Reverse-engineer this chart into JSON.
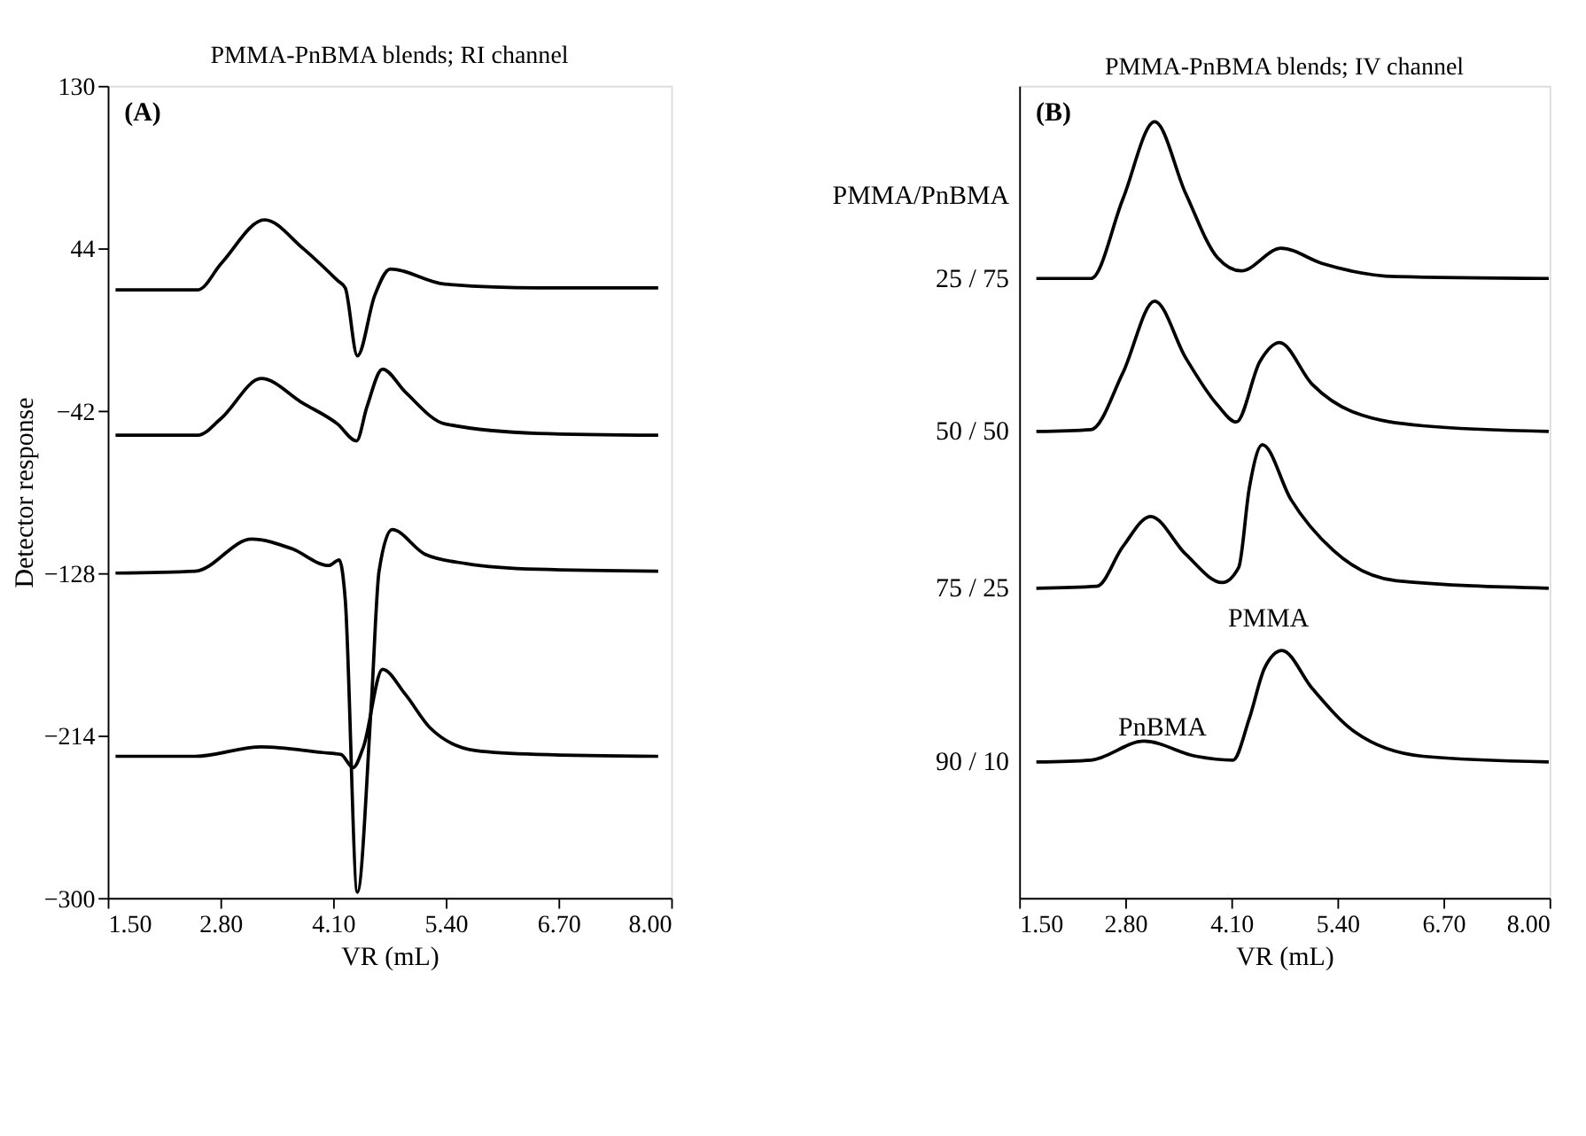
{
  "chart_data": [
    {
      "type": "line",
      "title": "PMMA-PnBMA blends; RI channel",
      "xlabel": "VR (mL)",
      "ylabel": "Detector response",
      "xlim": [
        1.5,
        8.0
      ],
      "xticks": [
        {
          "value": 1.5,
          "label": "1.50"
        },
        {
          "value": 2.8,
          "label": "2.80"
        },
        {
          "value": 4.1,
          "label": "4.10"
        },
        {
          "value": 5.4,
          "label": "5.40"
        },
        {
          "value": 6.7,
          "label": "6.70"
        },
        {
          "value": 8.0,
          "label": "8.00"
        }
      ],
      "ylim": [
        -300,
        130
      ],
      "yticks": [
        -300,
        -214,
        -128,
        -42,
        44,
        130
      ],
      "grid": false,
      "marker": "none",
      "line_style": "solid",
      "annotations": [
        "(A)"
      ],
      "series": [
        {
          "color": "#000000",
          "x": [
            1.59,
            2.54,
            2.81,
            3.31,
            3.75,
            4.15,
            4.24,
            4.38,
            4.58,
            4.76,
            5.39,
            6.46,
            7.85
          ],
          "values": [
            22,
            22,
            36,
            59,
            44,
            27,
            23,
            -13,
            19,
            33,
            25,
            23,
            23
          ]
        },
        {
          "color": "#000000",
          "x": [
            1.59,
            2.54,
            2.81,
            3.27,
            3.75,
            4.15,
            4.37,
            4.49,
            4.67,
            4.93,
            5.39,
            6.46,
            7.85
          ],
          "values": [
            -55,
            -55,
            -46,
            -25,
            -38,
            -49,
            -58,
            -40,
            -20,
            -32,
            -49,
            -54,
            -55
          ]
        },
        {
          "color": "#000000",
          "x": [
            1.59,
            2.51,
            3.16,
            3.62,
            4.05,
            4.17,
            4.24,
            4.38,
            4.54,
            4.63,
            4.78,
            5.16,
            5.64,
            6.46,
            7.85
          ],
          "values": [
            -128,
            -127,
            -110,
            -115,
            -124,
            -121,
            -142,
            -297,
            -198,
            -127,
            -105,
            -118,
            -123,
            -126,
            -127
          ]
        },
        {
          "color": "#000000",
          "x": [
            1.59,
            2.51,
            3.27,
            3.98,
            4.19,
            4.33,
            4.45,
            4.67,
            4.93,
            5.22,
            5.75,
            6.46,
            7.85
          ],
          "values": [
            -225,
            -225,
            -220,
            -223,
            -224,
            -231,
            -220,
            -179,
            -192,
            -210,
            -222,
            -224,
            -225
          ]
        }
      ]
    },
    {
      "type": "line",
      "title": "PMMA-PnBMA blends; IV channel",
      "xlabel": "VR (mL)",
      "legend_title": "PMMA/PnBMA",
      "xlim": [
        1.5,
        8.0
      ],
      "xticks": [
        {
          "value": 1.5,
          "label": "1.50"
        },
        {
          "value": 2.8,
          "label": "2.80"
        },
        {
          "value": 4.1,
          "label": "4.10"
        },
        {
          "value": 5.4,
          "label": "5.40"
        },
        {
          "value": 6.7,
          "label": "6.70"
        },
        {
          "value": 8.0,
          "label": "8.00"
        }
      ],
      "ylim": [
        -300,
        130
      ],
      "tick_labels": "x",
      "grid": false,
      "marker": "none",
      "line_style": "solid",
      "annotations": [
        "(B)",
        "PnBMA",
        "PMMA"
      ],
      "series": [
        {
          "name": "25 / 75",
          "color": "#000000",
          "x": [
            1.71,
            2.38,
            2.77,
            3.16,
            3.54,
            3.93,
            4.22,
            4.71,
            5.21,
            6.12,
            7.99
          ],
          "values": [
            28,
            28,
            70,
            111,
            73,
            39,
            32,
            44,
            36,
            29,
            28
          ]
        },
        {
          "name": "50 / 50",
          "color": "#000000",
          "x": [
            1.71,
            2.38,
            2.77,
            3.16,
            3.54,
            3.93,
            4.16,
            4.45,
            4.69,
            5.09,
            5.61,
            6.45,
            7.99
          ],
          "values": [
            -53,
            -52,
            -22,
            16,
            -14,
            -39,
            -48,
            -16,
            -6,
            -28,
            -43,
            -50,
            -53
          ]
        },
        {
          "name": "75 / 25",
          "color": "#000000",
          "x": [
            1.71,
            2.45,
            2.77,
            3.11,
            3.54,
            3.99,
            4.19,
            4.32,
            4.48,
            4.83,
            5.35,
            6.12,
            7.99
          ],
          "values": [
            -136,
            -135,
            -114,
            -98,
            -118,
            -133,
            -125,
            -83,
            -60,
            -89,
            -116,
            -132,
            -136
          ]
        },
        {
          "name": "90 / 10",
          "color": "#000000",
          "x": [
            1.71,
            2.38,
            3.03,
            3.67,
            4.12,
            4.32,
            4.51,
            4.72,
            5.09,
            5.61,
            6.45,
            7.99
          ],
          "values": [
            -228,
            -227,
            -217,
            -225,
            -227,
            -205,
            -178,
            -169,
            -189,
            -212,
            -225,
            -228
          ]
        }
      ]
    }
  ]
}
